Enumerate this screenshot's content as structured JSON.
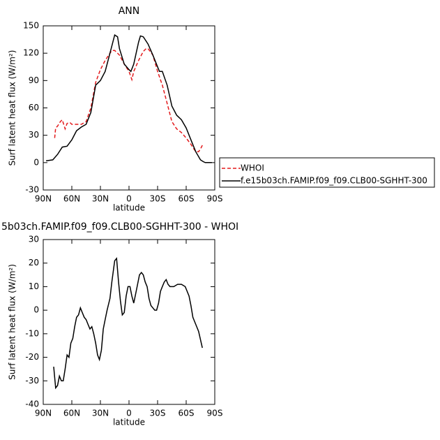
{
  "chart_data": [
    {
      "type": "line",
      "title": "ANN",
      "xlabel": "latitude",
      "ylabel": "Surf latent heat flux (W/m²)",
      "xlim": [
        90,
        -90
      ],
      "xticks": [
        {
          "value": 90,
          "label": "90N"
        },
        {
          "value": 60,
          "label": "60N"
        },
        {
          "value": 30,
          "label": "30N"
        },
        0,
        {
          "value": -30,
          "label": "30S"
        },
        {
          "value": -60,
          "label": "60S"
        },
        {
          "value": -90,
          "label": "90S"
        }
      ],
      "ylim": [
        -30,
        150
      ],
      "yticks": [
        -30,
        0,
        30,
        60,
        90,
        120,
        150
      ],
      "legend": "right",
      "series": [
        {
          "name": "WHOI",
          "color": "#e31a1c",
          "dash": true,
          "x": [
            78,
            77,
            75,
            72,
            70,
            67,
            65,
            62,
            60,
            55,
            50,
            45,
            40,
            35,
            30,
            25,
            20,
            18,
            15,
            10,
            5,
            0,
            -3,
            -5,
            -10,
            -15,
            -18,
            -20,
            -25,
            -30,
            -35,
            -40,
            -45,
            -50,
            -55,
            -60,
            -65,
            -70,
            -73,
            -75,
            -77
          ],
          "values": [
            27,
            38,
            40,
            45,
            47,
            37,
            43,
            44,
            42,
            42,
            42,
            45,
            60,
            88,
            102,
            112,
            120,
            123,
            123,
            118,
            108,
            100,
            91,
            100,
            112,
            122,
            125,
            125,
            118,
            100,
            85,
            65,
            45,
            37,
            33,
            27,
            20,
            12,
            12,
            15,
            19
          ]
        },
        {
          "name": "f.e15b03ch.FAMIP.f09_f09.CLB00-SGHHT-300",
          "color": "#000000",
          "dash": false,
          "x": [
            87,
            80,
            75,
            70,
            65,
            60,
            55,
            50,
            45,
            40,
            35,
            30,
            25,
            20,
            15,
            12,
            10,
            5,
            0,
            -2,
            -5,
            -10,
            -12,
            -15,
            -20,
            -25,
            -30,
            -32,
            -35,
            -40,
            -45,
            -50,
            -55,
            -60,
            -65,
            -70,
            -75,
            -78,
            -80,
            -87
          ],
          "values": [
            2,
            3,
            9,
            17,
            18,
            25,
            35,
            39,
            42,
            55,
            85,
            90,
            100,
            120,
            140,
            138,
            125,
            108,
            102,
            100,
            108,
            132,
            139,
            138,
            130,
            118,
            105,
            100,
            100,
            85,
            62,
            52,
            47,
            38,
            25,
            12,
            3,
            1,
            0,
            0
          ]
        }
      ]
    },
    {
      "type": "line",
      "title": "5b03ch.FAMIP.f09_f09.CLB00-SGHHT-300 - WHOI",
      "xlabel": "latitude",
      "ylabel": "Surf latent heat flux (W/m²)",
      "xlim": [
        90,
        -90
      ],
      "xticks": [
        {
          "value": 90,
          "label": "90N"
        },
        {
          "value": 60,
          "label": "60N"
        },
        {
          "value": 30,
          "label": "30N"
        },
        0,
        {
          "value": -30,
          "label": "30S"
        },
        {
          "value": -60,
          "label": "60S"
        },
        {
          "value": -90,
          "label": "90S"
        }
      ],
      "ylim": [
        -40,
        30
      ],
      "yticks": [
        -40,
        -30,
        -20,
        -10,
        0,
        10,
        20,
        30
      ],
      "series": [
        {
          "color": "#000000",
          "dash": false,
          "x": [
            79,
            77,
            75,
            73,
            71,
            69,
            67,
            65,
            63,
            61,
            59,
            57,
            55,
            53,
            51,
            49,
            47,
            45,
            43,
            41,
            39,
            37,
            35,
            33,
            31,
            29,
            27,
            25,
            23,
            20,
            18,
            16,
            15,
            13,
            11,
            9,
            7,
            5,
            3,
            1,
            -1,
            -3,
            -5,
            -7,
            -9,
            -11,
            -13,
            -15,
            -17,
            -19,
            -21,
            -23,
            -25,
            -27,
            -29,
            -31,
            -33,
            -35,
            -37,
            -39,
            -41,
            -43,
            -47,
            -51,
            -55,
            -59,
            -63,
            -65,
            -67,
            -70,
            -73,
            -77
          ],
          "values": [
            -24,
            -33,
            -32,
            -28,
            -30,
            -30,
            -25,
            -19,
            -20,
            -14,
            -12,
            -7,
            -3,
            -2,
            1,
            -1,
            -3,
            -4,
            -6,
            -8,
            -7,
            -10,
            -14,
            -19,
            -21,
            -17,
            -8,
            -4,
            0,
            5,
            12,
            18,
            21,
            22,
            12,
            4,
            -2,
            -1,
            6,
            10,
            10,
            6,
            3,
            7,
            11,
            15,
            16,
            15,
            12,
            10,
            5,
            2,
            1,
            0,
            0,
            3,
            8,
            10,
            12,
            13,
            11,
            10,
            10,
            11,
            11,
            10,
            6,
            2,
            -3,
            -6,
            -9,
            -16
          ]
        }
      ]
    }
  ]
}
